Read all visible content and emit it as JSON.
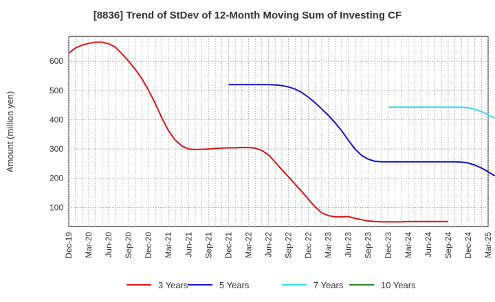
{
  "chart_data": {
    "type": "line",
    "title": "[8836]  Trend of StDev of 12-Month Moving Sum of Investing CF",
    "xlabel": "",
    "ylabel": "Amount (million yen)",
    "ylim": [
      35,
      685
    ],
    "yticks": [
      100,
      200,
      300,
      400,
      500,
      600
    ],
    "grid": true,
    "legend_position": "bottom",
    "categories": [
      "Dec-19",
      "Mar-20",
      "Jun-20",
      "Sep-20",
      "Dec-20",
      "Mar-21",
      "Jun-21",
      "Sep-21",
      "Dec-21",
      "Mar-22",
      "Jun-22",
      "Sep-22",
      "Dec-22",
      "Mar-23",
      "Jun-23",
      "Sep-23",
      "Dec-23",
      "Mar-24",
      "Jun-24",
      "Sep-24",
      "Dec-24",
      "Mar-25"
    ],
    "series": [
      {
        "name": "3 Years",
        "color": "#dd1111",
        "points": [
          [
            0,
            628
          ],
          [
            1,
            645
          ],
          [
            2,
            655
          ],
          [
            3,
            661
          ],
          [
            4,
            665
          ],
          [
            5,
            665
          ],
          [
            6,
            660
          ],
          [
            7,
            648
          ],
          [
            8,
            625
          ],
          [
            9,
            600
          ],
          [
            10,
            572
          ],
          [
            11,
            540
          ],
          [
            12,
            500
          ],
          [
            13,
            455
          ],
          [
            14,
            405
          ],
          [
            15,
            362
          ],
          [
            16,
            330
          ],
          [
            17,
            310
          ],
          [
            18,
            300
          ],
          [
            19,
            298
          ],
          [
            20,
            299
          ],
          [
            21,
            300
          ],
          [
            22,
            302
          ],
          [
            23,
            303
          ],
          [
            24,
            304
          ],
          [
            25,
            304
          ],
          [
            26,
            305
          ],
          [
            27,
            305
          ],
          [
            28,
            303
          ],
          [
            29,
            295
          ],
          [
            30,
            280
          ],
          [
            31,
            255
          ],
          [
            32,
            230
          ],
          [
            33,
            205
          ],
          [
            34,
            180
          ],
          [
            35,
            155
          ],
          [
            36,
            128
          ],
          [
            37,
            102
          ],
          [
            38,
            82
          ],
          [
            39,
            72
          ],
          [
            40,
            68
          ],
          [
            41,
            68
          ],
          [
            42,
            69
          ],
          [
            43,
            63
          ],
          [
            44,
            58
          ],
          [
            45,
            54
          ],
          [
            46,
            52
          ],
          [
            47,
            51
          ],
          [
            48,
            51
          ],
          [
            49,
            51
          ],
          [
            50,
            51
          ],
          [
            51,
            52
          ],
          [
            52,
            52
          ],
          [
            53,
            52
          ],
          [
            54,
            52
          ],
          [
            55,
            52
          ],
          [
            56,
            52
          ],
          [
            57,
            52
          ]
        ]
      },
      {
        "name": "5 Years",
        "color": "#1111cc",
        "points": [
          [
            24,
            520
          ],
          [
            25,
            520
          ],
          [
            26,
            520
          ],
          [
            27,
            520
          ],
          [
            28,
            520
          ],
          [
            29,
            520
          ],
          [
            30,
            520
          ],
          [
            31,
            519
          ],
          [
            32,
            517
          ],
          [
            33,
            512
          ],
          [
            34,
            505
          ],
          [
            35,
            493
          ],
          [
            36,
            477
          ],
          [
            37,
            458
          ],
          [
            38,
            437
          ],
          [
            39,
            415
          ],
          [
            40,
            390
          ],
          [
            41,
            362
          ],
          [
            42,
            330
          ],
          [
            43,
            300
          ],
          [
            44,
            278
          ],
          [
            45,
            265
          ],
          [
            46,
            258
          ],
          [
            47,
            256
          ],
          [
            48,
            256
          ],
          [
            49,
            256
          ],
          [
            50,
            256
          ],
          [
            51,
            256
          ],
          [
            52,
            256
          ],
          [
            53,
            256
          ],
          [
            54,
            256
          ],
          [
            55,
            256
          ],
          [
            56,
            256
          ],
          [
            57,
            256
          ],
          [
            58,
            256
          ],
          [
            59,
            255
          ],
          [
            60,
            252
          ],
          [
            61,
            245
          ],
          [
            62,
            235
          ],
          [
            63,
            222
          ],
          [
            64,
            208
          ]
        ]
      },
      {
        "name": "7 Years",
        "color": "#33ddee",
        "points": [
          [
            48,
            443
          ],
          [
            49,
            443
          ],
          [
            50,
            443
          ],
          [
            51,
            443
          ],
          [
            52,
            443
          ],
          [
            53,
            443
          ],
          [
            54,
            443
          ],
          [
            55,
            443
          ],
          [
            56,
            443
          ],
          [
            57,
            443
          ],
          [
            58,
            443
          ],
          [
            59,
            443
          ],
          [
            60,
            441
          ],
          [
            61,
            436
          ],
          [
            62,
            428
          ],
          [
            63,
            417
          ],
          [
            64,
            405
          ]
        ]
      },
      {
        "name": "10 Years",
        "color": "#228822",
        "points": []
      }
    ]
  }
}
